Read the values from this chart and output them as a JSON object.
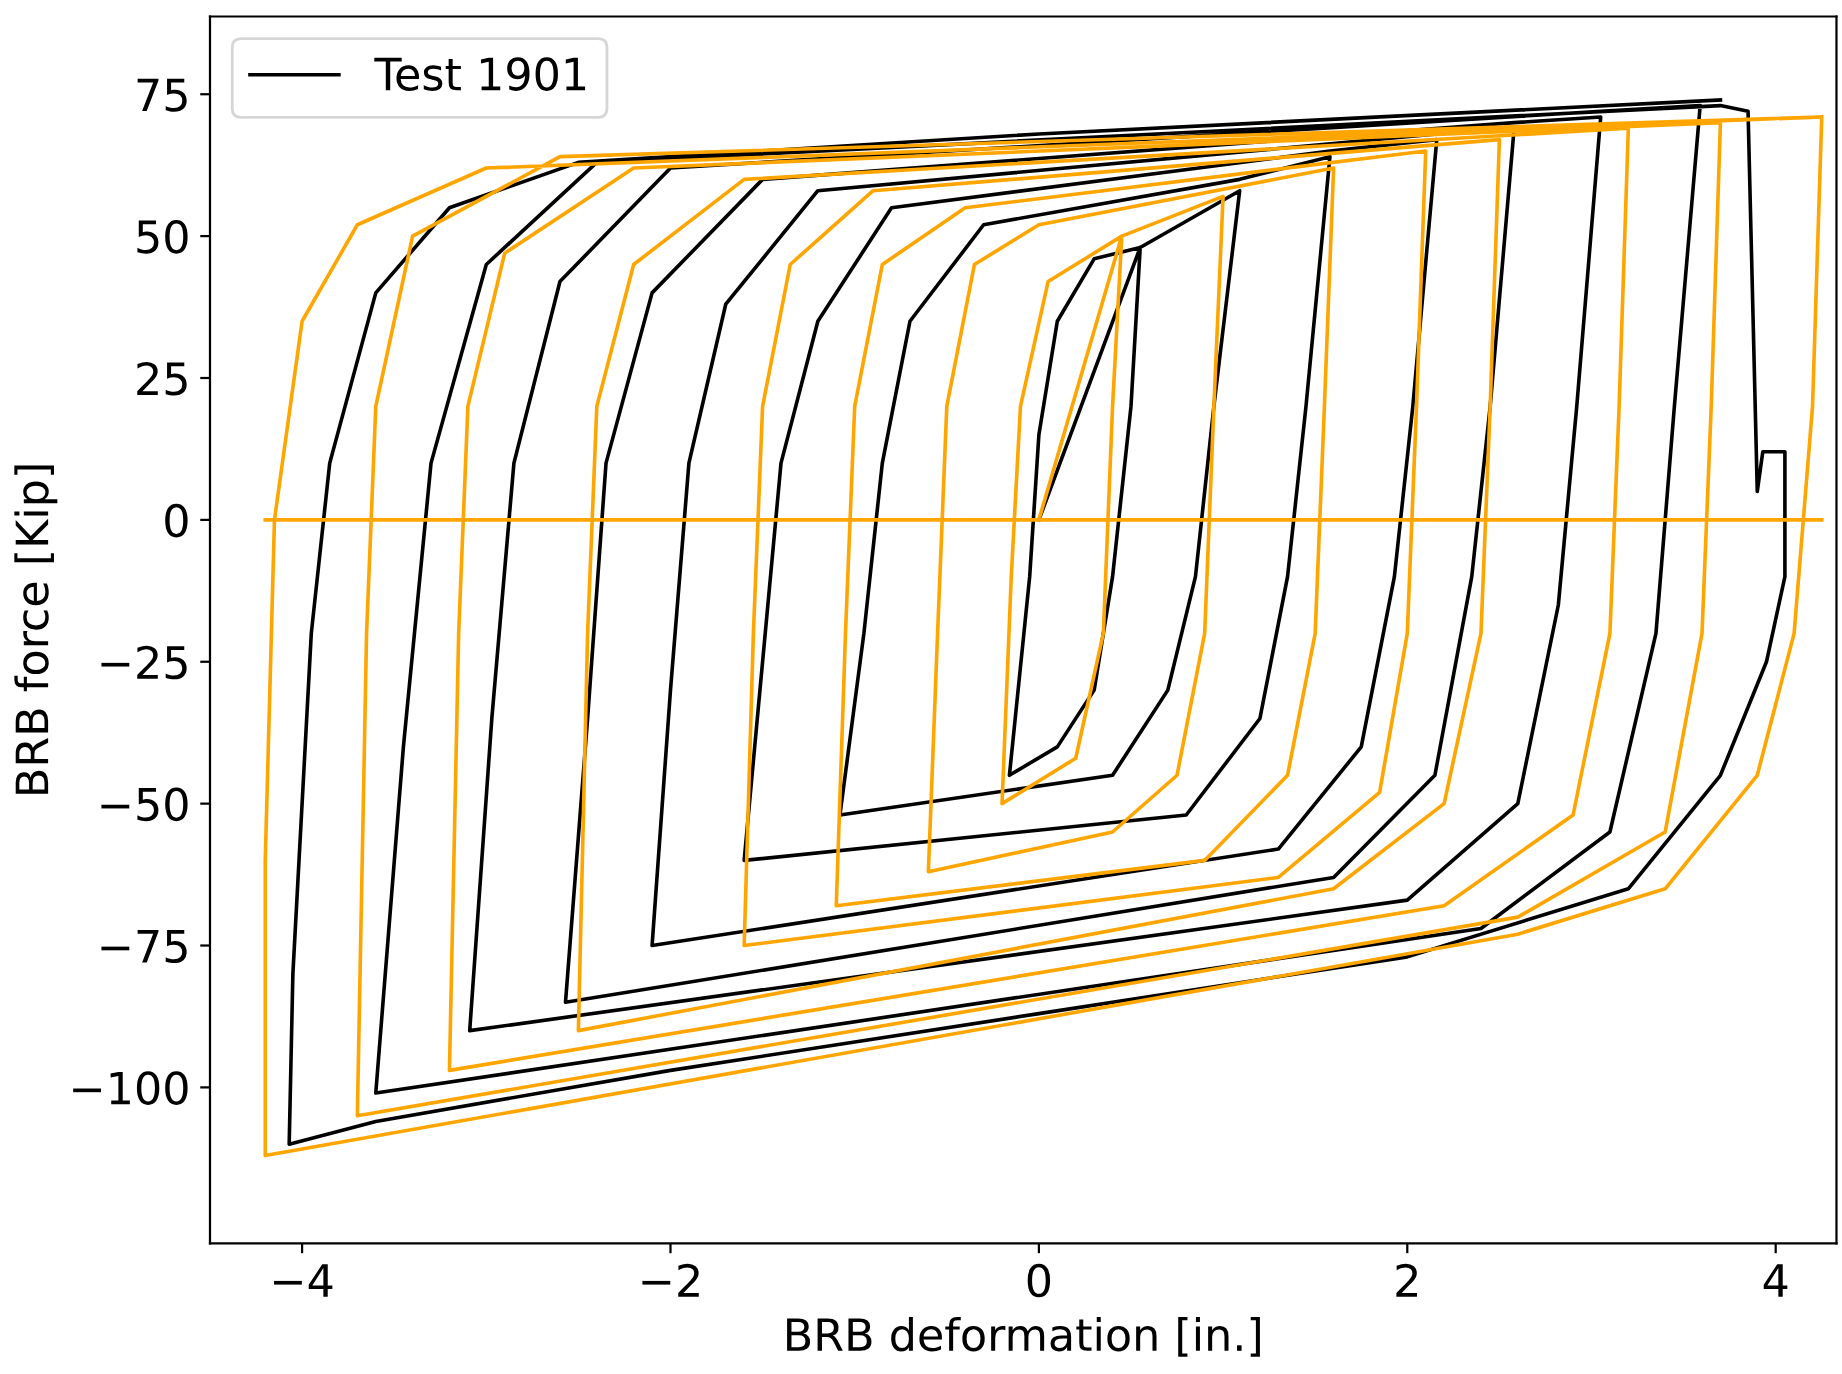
{
  "chart_data": {
    "type": "line",
    "xlabel": "BRB deformation [in.]",
    "ylabel": "BRB force [Kip]",
    "xlim": [
      -4.5,
      4.33
    ],
    "ylim": [
      -127.5,
      88.7
    ],
    "xticks": [
      {
        "value": -4,
        "label": "−4"
      },
      {
        "value": -2,
        "label": "−2"
      },
      0,
      2,
      4
    ],
    "yticks": [
      {
        "value": -100,
        "label": "−100"
      },
      {
        "value": -75,
        "label": "−75"
      },
      {
        "value": -50,
        "label": "−50"
      },
      {
        "value": -25,
        "label": "−25"
      },
      0,
      25,
      50,
      75
    ],
    "grid": false,
    "legend": "top left",
    "marker": "none",
    "line_style": "solid",
    "series": [
      {
        "name": "Test 1901",
        "color": "#000000",
        "x": [
          0,
          0.55,
          0.5,
          0.4,
          0.3,
          0.1,
          -0.16,
          -0.05,
          0,
          0.1,
          0.3,
          0.55,
          1.09,
          0.95,
          0.85,
          0.7,
          0.4,
          -1.08,
          -0.95,
          -0.85,
          -0.7,
          -0.3,
          1.09,
          1.58,
          1.45,
          1.35,
          1.2,
          0.8,
          -1.6,
          -1.5,
          -1.4,
          -1.2,
          -0.8,
          1.58,
          2.16,
          2.03,
          1.93,
          1.75,
          1.3,
          -2.1,
          -2.0,
          -1.9,
          -1.7,
          -1.2,
          2.16,
          2.58,
          2.45,
          2.35,
          2.15,
          1.6,
          -2.57,
          -2.45,
          -2.35,
          -2.1,
          -1.5,
          2.58,
          3.05,
          2.92,
          2.82,
          2.6,
          2.0,
          -3.09,
          -2.97,
          -2.85,
          -2.6,
          -2.0,
          3.05,
          3.59,
          3.45,
          3.35,
          3.1,
          2.4,
          -3.6,
          -3.45,
          -3.3,
          -3.0,
          -2.4,
          3.7,
          3.85,
          3.9,
          3.93,
          4.05,
          4.05,
          3.95,
          3.7,
          3.2,
          2,
          0,
          -2,
          -3.6,
          -4.07,
          -4.05,
          -3.95,
          -3.85,
          -3.6,
          -3.2,
          -2.5,
          0,
          3.7
        ],
        "values": [
          0,
          48,
          20,
          -10,
          -30,
          -40,
          -45,
          -10,
          15,
          35,
          46,
          48,
          58,
          20,
          -10,
          -30,
          -45,
          -52,
          -20,
          10,
          35,
          52,
          60,
          64,
          20,
          -10,
          -35,
          -52,
          -60,
          -25,
          10,
          35,
          55,
          65,
          67,
          20,
          -10,
          -40,
          -58,
          -75,
          -30,
          10,
          38,
          58,
          68,
          69,
          20,
          -10,
          -45,
          -63,
          -85,
          -35,
          10,
          40,
          60,
          70,
          71,
          20,
          -15,
          -50,
          -67,
          -90,
          -35,
          10,
          42,
          62,
          72,
          73,
          20,
          -20,
          -55,
          -72,
          -101,
          -40,
          10,
          45,
          63,
          73,
          72,
          5,
          12,
          12,
          -10,
          -25,
          -45,
          -65,
          -77,
          -87,
          -97,
          -106,
          -110,
          -80,
          -20,
          10,
          40,
          55,
          63,
          68,
          74
        ]
      },
      {
        "color": "#ffa500",
        "x": [
          0,
          0.45,
          0.4,
          0.35,
          0.2,
          -0.2,
          -0.15,
          -0.1,
          0.05,
          0.45,
          1.0,
          0.95,
          0.9,
          0.75,
          0.4,
          -0.6,
          -0.55,
          -0.5,
          -0.35,
          0,
          1.6,
          1.55,
          1.5,
          1.35,
          0.9,
          -1.1,
          -1.05,
          -1.0,
          -0.85,
          -0.4,
          2.1,
          2.05,
          2.0,
          1.85,
          1.3,
          -1.6,
          -1.55,
          -1.5,
          -1.35,
          -0.9,
          2.5,
          2.45,
          2.4,
          2.2,
          1.6,
          -2.5,
          -2.45,
          -2.4,
          -2.2,
          -1.6,
          3.2,
          3.15,
          3.1,
          2.9,
          2.2,
          -3.2,
          -3.15,
          -3.1,
          -2.9,
          -2.2,
          3.7,
          3.65,
          3.6,
          3.4,
          2.6,
          -3.7,
          -3.65,
          -3.6,
          -3.4,
          -2.6,
          4.25,
          4.2,
          4.1,
          3.9,
          3.4,
          2.6,
          -4.2,
          -4.2,
          -4.15,
          -4.0,
          -3.7,
          -3,
          4.25
        ],
        "values": [
          0,
          50,
          20,
          -20,
          -42,
          -50,
          -10,
          20,
          42,
          50,
          57,
          20,
          -20,
          -45,
          -55,
          -62,
          -20,
          20,
          45,
          52,
          62,
          20,
          -20,
          -45,
          -60,
          -68,
          -20,
          20,
          45,
          55,
          65,
          20,
          -20,
          -48,
          -63,
          -75,
          -20,
          20,
          45,
          58,
          67,
          20,
          -20,
          -50,
          -65,
          -90,
          -20,
          20,
          45,
          60,
          69,
          20,
          -20,
          -52,
          -68,
          -97,
          -20,
          20,
          47,
          62,
          70,
          20,
          -20,
          -55,
          -70,
          -105,
          -20,
          20,
          50,
          64,
          71,
          20,
          -20,
          -45,
          -65,
          -73,
          -112,
          -60,
          0,
          35,
          52,
          62,
          71
        ]
      },
      {
        "color": "#ffa500",
        "x": [
          -4.2,
          4.25
        ],
        "values": [
          0,
          0
        ]
      }
    ]
  }
}
